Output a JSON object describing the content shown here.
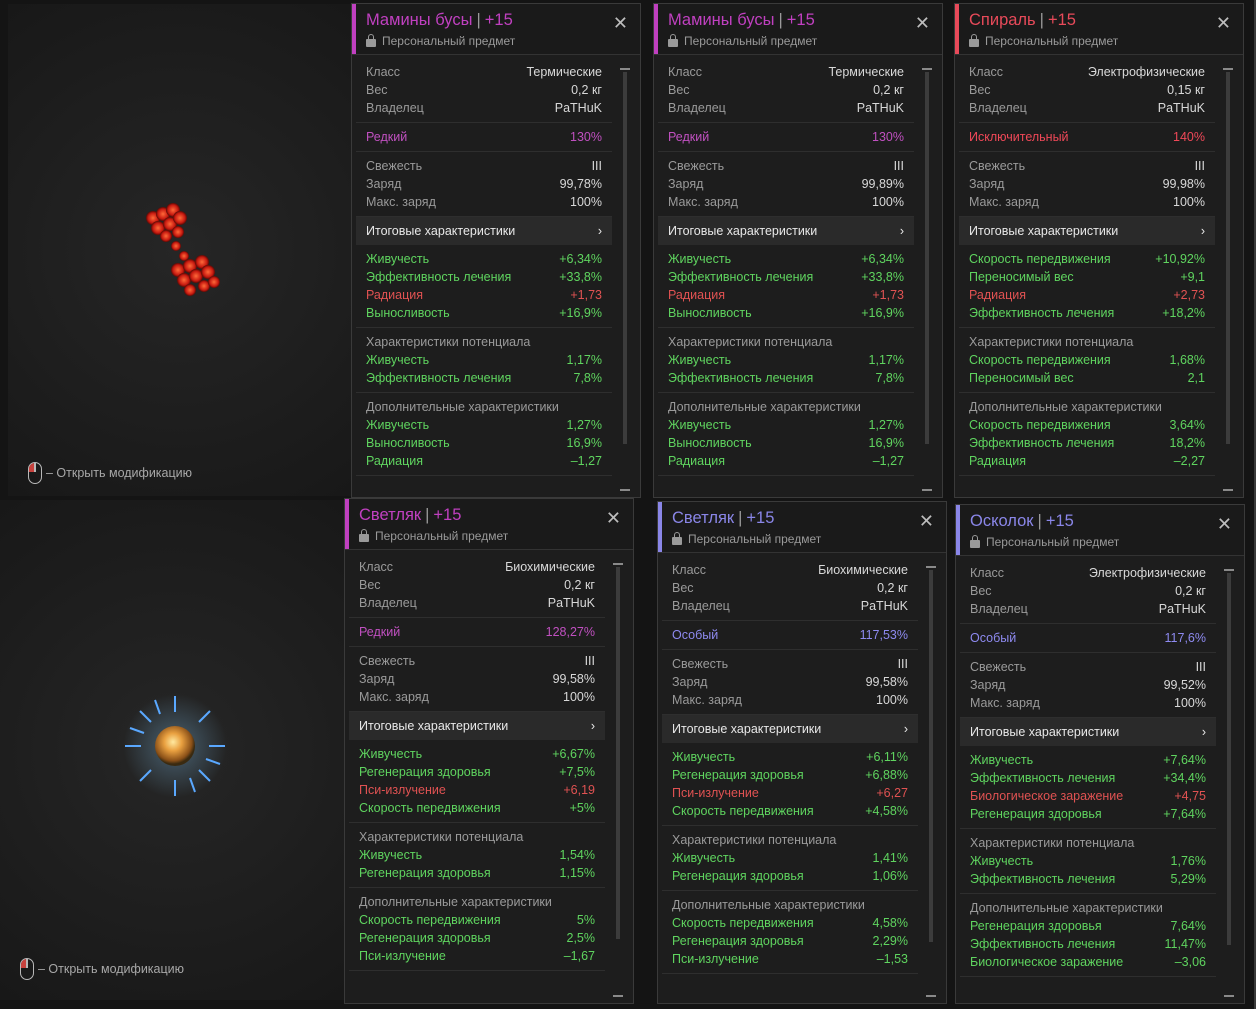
{
  "preview_hint": "– Открыть модификацию",
  "cards": [
    {
      "accent": "#c040c0",
      "name": "Мамины бусы",
      "level": "+15",
      "personal": "Персональный предмет",
      "rows1": [
        [
          "Класс",
          "Термические"
        ],
        [
          "Вес",
          "0,2 кг"
        ],
        [
          "Владелец",
          "PaTHuK"
        ]
      ],
      "rarity": [
        "Редкий",
        "130%"
      ],
      "rarity_color": "#c050c0",
      "rows2": [
        [
          "Свежесть",
          "III"
        ],
        [
          "Заряд",
          "99,78%"
        ],
        [
          "Макс. заряд",
          "100%"
        ]
      ],
      "totals_label": "Итоговые характеристики",
      "stats": [
        [
          "Живучесть",
          "+6,34%",
          "g"
        ],
        [
          "Эффективность лечения",
          "+33,8%",
          "g"
        ],
        [
          "Радиация",
          "+1,73",
          "red"
        ],
        [
          "Выносливость",
          "+16,9%",
          "g"
        ]
      ],
      "potential_title": "Характеристики потенциала",
      "potential": [
        [
          "Живучесть",
          "1,17%",
          "g"
        ],
        [
          "Эффективность лечения",
          "7,8%",
          "g"
        ]
      ],
      "extra_title": "Дополнительные характеристики",
      "extra": [
        [
          "Живучесть",
          "1,27%",
          "g"
        ],
        [
          "Выносливость",
          "16,9%",
          "g"
        ],
        [
          "Радиация",
          "–1,27",
          "g"
        ]
      ]
    },
    {
      "accent": "#c040c0",
      "name": "Мамины бусы",
      "level": "+15",
      "personal": "Персональный предмет",
      "rows1": [
        [
          "Класс",
          "Термические"
        ],
        [
          "Вес",
          "0,2 кг"
        ],
        [
          "Владелец",
          "PaTHuK"
        ]
      ],
      "rarity": [
        "Редкий",
        "130%"
      ],
      "rarity_color": "#c050c0",
      "rows2": [
        [
          "Свежесть",
          "III"
        ],
        [
          "Заряд",
          "99,89%"
        ],
        [
          "Макс. заряд",
          "100%"
        ]
      ],
      "totals_label": "Итоговые характеристики",
      "stats": [
        [
          "Живучесть",
          "+6,34%",
          "g"
        ],
        [
          "Эффективность лечения",
          "+33,8%",
          "g"
        ],
        [
          "Радиация",
          "+1,73",
          "red"
        ],
        [
          "Выносливость",
          "+16,9%",
          "g"
        ]
      ],
      "potential_title": "Характеристики потенциала",
      "potential": [
        [
          "Живучесть",
          "1,17%",
          "g"
        ],
        [
          "Эффективность лечения",
          "7,8%",
          "g"
        ]
      ],
      "extra_title": "Дополнительные характеристики",
      "extra": [
        [
          "Живучесть",
          "1,27%",
          "g"
        ],
        [
          "Выносливость",
          "16,9%",
          "g"
        ],
        [
          "Радиация",
          "–1,27",
          "g"
        ]
      ]
    },
    {
      "accent": "#e84a5a",
      "name": "Спираль",
      "level": "+15",
      "personal": "Персональный предмет",
      "rows1": [
        [
          "Класс",
          "Электрофизические"
        ],
        [
          "Вес",
          "0,15 кг"
        ],
        [
          "Владелец",
          "PaTHuK"
        ]
      ],
      "rarity": [
        "Исключительный",
        "140%"
      ],
      "rarity_color": "#f04858",
      "rows2": [
        [
          "Свежесть",
          "III"
        ],
        [
          "Заряд",
          "99,98%"
        ],
        [
          "Макс. заряд",
          "100%"
        ]
      ],
      "totals_label": "Итоговые характеристики",
      "stats": [
        [
          "Скорость передвижения",
          "+10,92%",
          "g"
        ],
        [
          "Переносимый вес",
          "+9,1",
          "g"
        ],
        [
          "Радиация",
          "+2,73",
          "red"
        ],
        [
          "Эффективность лечения",
          "+18,2%",
          "g"
        ]
      ],
      "potential_title": "Характеристики потенциала",
      "potential": [
        [
          "Скорость передвижения",
          "1,68%",
          "g"
        ],
        [
          "Переносимый вес",
          "2,1",
          "g"
        ]
      ],
      "extra_title": "Дополнительные характеристики",
      "extra": [
        [
          "Скорость передвижения",
          "3,64%",
          "g"
        ],
        [
          "Эффективность лечения",
          "18,2%",
          "g"
        ],
        [
          "Радиация",
          "–2,27",
          "g"
        ]
      ]
    },
    {
      "accent": "#c040c0",
      "name": "Светляк",
      "level": "+15",
      "personal": "Персональный предмет",
      "rows1": [
        [
          "Класс",
          "Биохимические"
        ],
        [
          "Вес",
          "0,2 кг"
        ],
        [
          "Владелец",
          "PaTHuK"
        ]
      ],
      "rarity": [
        "Редкий",
        "128,27%"
      ],
      "rarity_color": "#c050c0",
      "rows2": [
        [
          "Свежесть",
          "III"
        ],
        [
          "Заряд",
          "99,58%"
        ],
        [
          "Макс. заряд",
          "100%"
        ]
      ],
      "totals_label": "Итоговые характеристики",
      "stats": [
        [
          "Живучесть",
          "+6,67%",
          "g"
        ],
        [
          "Регенерация здоровья",
          "+7,5%",
          "g"
        ],
        [
          "Пси-излучение",
          "+6,19",
          "red"
        ],
        [
          "Скорость передвижения",
          "+5%",
          "g"
        ]
      ],
      "potential_title": "Характеристики потенциала",
      "potential": [
        [
          "Живучесть",
          "1,54%",
          "g"
        ],
        [
          "Регенерация здоровья",
          "1,15%",
          "g"
        ]
      ],
      "extra_title": "Дополнительные характеристики",
      "extra": [
        [
          "Скорость передвижения",
          "5%",
          "g"
        ],
        [
          "Регенерация здоровья",
          "2,5%",
          "g"
        ],
        [
          "Пси-излучение",
          "–1,67",
          "g"
        ]
      ]
    },
    {
      "accent": "#8a86e8",
      "name": "Светляк",
      "level": "+15",
      "personal": "Персональный предмет",
      "rows1": [
        [
          "Класс",
          "Биохимические"
        ],
        [
          "Вес",
          "0,2 кг"
        ],
        [
          "Владелец",
          "PaTHuK"
        ]
      ],
      "rarity": [
        "Особый",
        "117,53%"
      ],
      "rarity_color": "#8e8af0",
      "rows2": [
        [
          "Свежесть",
          "III"
        ],
        [
          "Заряд",
          "99,58%"
        ],
        [
          "Макс. заряд",
          "100%"
        ]
      ],
      "totals_label": "Итоговые характеристики",
      "stats": [
        [
          "Живучесть",
          "+6,11%",
          "g"
        ],
        [
          "Регенерация здоровья",
          "+6,88%",
          "g"
        ],
        [
          "Пси-излучение",
          "+6,27",
          "red"
        ],
        [
          "Скорость передвижения",
          "+4,58%",
          "g"
        ]
      ],
      "potential_title": "Характеристики потенциала",
      "potential": [
        [
          "Живучесть",
          "1,41%",
          "g"
        ],
        [
          "Регенерация здоровья",
          "1,06%",
          "g"
        ]
      ],
      "extra_title": "Дополнительные характеристики",
      "extra": [
        [
          "Скорость передвижения",
          "4,58%",
          "g"
        ],
        [
          "Регенерация здоровья",
          "2,29%",
          "g"
        ],
        [
          "Пси-излучение",
          "–1,53",
          "g"
        ]
      ]
    },
    {
      "accent": "#8a86e8",
      "name": "Осколок",
      "level": "+15",
      "personal": "Персональный предмет",
      "rows1": [
        [
          "Класс",
          "Электрофизические"
        ],
        [
          "Вес",
          "0,2 кг"
        ],
        [
          "Владелец",
          "PaTHuK"
        ]
      ],
      "rarity": [
        "Особый",
        "117,6%"
      ],
      "rarity_color": "#8e8af0",
      "rows2": [
        [
          "Свежесть",
          "III"
        ],
        [
          "Заряд",
          "99,52%"
        ],
        [
          "Макс. заряд",
          "100%"
        ]
      ],
      "totals_label": "Итоговые характеристики",
      "stats": [
        [
          "Живучесть",
          "+7,64%",
          "g"
        ],
        [
          "Эффективность лечения",
          "+34,4%",
          "g"
        ],
        [
          "Биологическое заражение",
          "+4,75",
          "red"
        ],
        [
          "Регенерация здоровья",
          "+7,64%",
          "g"
        ]
      ],
      "potential_title": "Характеристики потенциала",
      "potential": [
        [
          "Живучесть",
          "1,76%",
          "g"
        ],
        [
          "Эффективность лечения",
          "5,29%",
          "g"
        ]
      ],
      "extra_title": "Дополнительные характеристики",
      "extra": [
        [
          "Регенерация здоровья",
          "7,64%",
          "g"
        ],
        [
          "Эффективность лечения",
          "11,47%",
          "g"
        ],
        [
          "Биологическое заражение",
          "–3,06",
          "g"
        ]
      ]
    }
  ]
}
